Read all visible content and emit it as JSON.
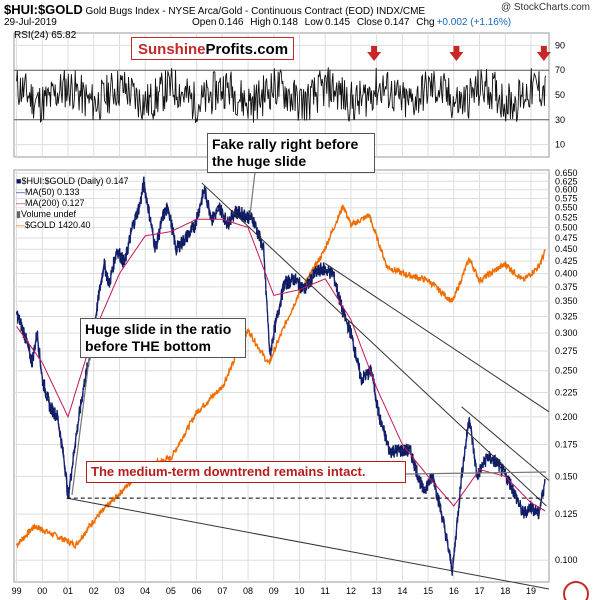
{
  "header": {
    "symbol": "$HUI:$GOLD",
    "description": "Gold Bugs Index - NYSE Arca/Gold - Continuous Contract (EOD) INDX/CME",
    "credit": "@ StockCharts.com",
    "date": "29-Jul-2019",
    "open_label": "Open",
    "open": "0.146",
    "high_label": "High",
    "high": "0.148",
    "low_label": "Low",
    "low": "0.145",
    "close_label": "Close",
    "close": "0.147",
    "chg_label": "Chg",
    "chg": "+0.002 (+1.16%)"
  },
  "logo": {
    "part1": "Sunshine",
    "part2": "Profits.com"
  },
  "rsi_panel": {
    "label": "RSI(24) 65.82",
    "ticks": [
      90,
      70,
      50,
      30,
      10
    ],
    "reference_levels": [
      70,
      30
    ],
    "ylim": [
      0,
      100
    ],
    "markers": [
      {
        "year": 2012.9,
        "color": "#c62828"
      },
      {
        "year": 2016.1,
        "color": "#c62828"
      },
      {
        "year": 2019.5,
        "color": "#c62828"
      }
    ]
  },
  "annotations": {
    "fake_rally": "Fake rally right before the huge slide",
    "huge_slide": "Huge slide in the ratio before THE bottom",
    "downtrend": "The medium-term downtrend remains intact."
  },
  "legend": {
    "main": "$HUI:$GOLD (Daily) 0.147",
    "ma50": "MA(50) 0.133",
    "ma200": "MA(200) 0.127",
    "volume": "Volume undef",
    "gold": "$GOLD 1420.40"
  },
  "colors": {
    "ratio": "#0d1b5e",
    "ma50": "#1a237e",
    "ma200": "#c2185b",
    "gold": "#ef6c00",
    "annotation_red": "#b71c1c",
    "trendline": "#333333",
    "grid": "#dddddd"
  },
  "chart_data": {
    "type": "line",
    "xlabel": "",
    "ylabel": "",
    "x_ticks": [
      "99",
      "00",
      "01",
      "02",
      "03",
      "04",
      "05",
      "06",
      "07",
      "08",
      "09",
      "10",
      "11",
      "12",
      "13",
      "14",
      "15",
      "16",
      "17",
      "18",
      "19"
    ],
    "y_ticks": [
      "0.650",
      "0.625",
      "0.600",
      "0.575",
      "0.550",
      "0.525",
      "0.500",
      "0.475",
      "0.450",
      "0.425",
      "0.400",
      "0.375",
      "0.350",
      "0.325",
      "0.300",
      "0.275",
      "0.250",
      "0.225",
      "0.200",
      "0.175",
      "0.150",
      "0.125",
      "0.100"
    ],
    "y_scale": "log",
    "ylim": [
      0.09,
      0.66
    ],
    "xlim": [
      1998.9,
      2019.7
    ],
    "series": [
      {
        "name": "$HUI:$GOLD",
        "points": [
          [
            1999.0,
            0.33
          ],
          [
            1999.3,
            0.3
          ],
          [
            1999.6,
            0.26
          ],
          [
            1999.8,
            0.3
          ],
          [
            2000.0,
            0.24
          ],
          [
            2000.3,
            0.21
          ],
          [
            2000.6,
            0.2
          ],
          [
            2000.9,
            0.155
          ],
          [
            2001.0,
            0.135
          ],
          [
            2001.3,
            0.18
          ],
          [
            2001.6,
            0.23
          ],
          [
            2001.9,
            0.28
          ],
          [
            2002.2,
            0.36
          ],
          [
            2002.4,
            0.42
          ],
          [
            2002.6,
            0.38
          ],
          [
            2002.9,
            0.45
          ],
          [
            2003.2,
            0.42
          ],
          [
            2003.5,
            0.5
          ],
          [
            2003.8,
            0.56
          ],
          [
            2003.95,
            0.62
          ],
          [
            2004.2,
            0.52
          ],
          [
            2004.4,
            0.45
          ],
          [
            2004.7,
            0.53
          ],
          [
            2004.9,
            0.55
          ],
          [
            2005.2,
            0.45
          ],
          [
            2005.5,
            0.47
          ],
          [
            2005.9,
            0.5
          ],
          [
            2006.3,
            0.6
          ],
          [
            2006.6,
            0.52
          ],
          [
            2006.9,
            0.55
          ],
          [
            2007.2,
            0.51
          ],
          [
            2007.5,
            0.54
          ],
          [
            2007.9,
            0.53
          ],
          [
            2008.2,
            0.52
          ],
          [
            2008.6,
            0.45
          ],
          [
            2008.85,
            0.27
          ],
          [
            2009.0,
            0.3
          ],
          [
            2009.4,
            0.38
          ],
          [
            2009.8,
            0.39
          ],
          [
            2010.2,
            0.37
          ],
          [
            2010.6,
            0.4
          ],
          [
            2010.9,
            0.41
          ],
          [
            2011.3,
            0.4
          ],
          [
            2011.7,
            0.33
          ],
          [
            2012.0,
            0.3
          ],
          [
            2012.4,
            0.24
          ],
          [
            2012.8,
            0.25
          ],
          [
            2013.1,
            0.2
          ],
          [
            2013.5,
            0.17
          ],
          [
            2013.9,
            0.17
          ],
          [
            2014.3,
            0.17
          ],
          [
            2014.8,
            0.14
          ],
          [
            2015.2,
            0.15
          ],
          [
            2015.6,
            0.12
          ],
          [
            2015.95,
            0.095
          ],
          [
            2016.3,
            0.15
          ],
          [
            2016.6,
            0.2
          ],
          [
            2016.9,
            0.15
          ],
          [
            2017.3,
            0.165
          ],
          [
            2017.7,
            0.16
          ],
          [
            2018.2,
            0.145
          ],
          [
            2018.7,
            0.125
          ],
          [
            2019.0,
            0.13
          ],
          [
            2019.3,
            0.125
          ],
          [
            2019.55,
            0.147
          ]
        ]
      },
      {
        "name": "MA(200)",
        "points": [
          [
            1999.0,
            0.31
          ],
          [
            2000.0,
            0.26
          ],
          [
            2001.0,
            0.2
          ],
          [
            2002.0,
            0.3
          ],
          [
            2003.0,
            0.4
          ],
          [
            2004.0,
            0.48
          ],
          [
            2005.0,
            0.49
          ],
          [
            2006.0,
            0.52
          ],
          [
            2007.0,
            0.52
          ],
          [
            2008.0,
            0.5
          ],
          [
            2009.0,
            0.36
          ],
          [
            2010.0,
            0.37
          ],
          [
            2011.0,
            0.39
          ],
          [
            2012.0,
            0.32
          ],
          [
            2013.0,
            0.23
          ],
          [
            2014.0,
            0.175
          ],
          [
            2015.0,
            0.15
          ],
          [
            2016.0,
            0.13
          ],
          [
            2017.0,
            0.155
          ],
          [
            2018.0,
            0.15
          ],
          [
            2019.0,
            0.132
          ],
          [
            2019.55,
            0.127
          ]
        ]
      },
      {
        "name": "$GOLD",
        "points": [
          [
            1999.0,
            260
          ],
          [
            1999.7,
            290
          ],
          [
            2000.5,
            275
          ],
          [
            2001.3,
            260
          ],
          [
            2002.0,
            300
          ],
          [
            2003.0,
            350
          ],
          [
            2004.0,
            410
          ],
          [
            2005.0,
            430
          ],
          [
            2006.0,
            560
          ],
          [
            2007.0,
            650
          ],
          [
            2008.0,
            900
          ],
          [
            2008.8,
            740
          ],
          [
            2009.5,
            950
          ],
          [
            2010.0,
            1120
          ],
          [
            2010.9,
            1400
          ],
          [
            2011.7,
            1850
          ],
          [
            2012.0,
            1650
          ],
          [
            2012.7,
            1750
          ],
          [
            2013.4,
            1300
          ],
          [
            2014.0,
            1250
          ],
          [
            2015.0,
            1200
          ],
          [
            2015.95,
            1060
          ],
          [
            2016.6,
            1360
          ],
          [
            2017.0,
            1200
          ],
          [
            2018.0,
            1320
          ],
          [
            2018.7,
            1200
          ],
          [
            2019.3,
            1300
          ],
          [
            2019.55,
            1420
          ]
        ]
      }
    ]
  }
}
